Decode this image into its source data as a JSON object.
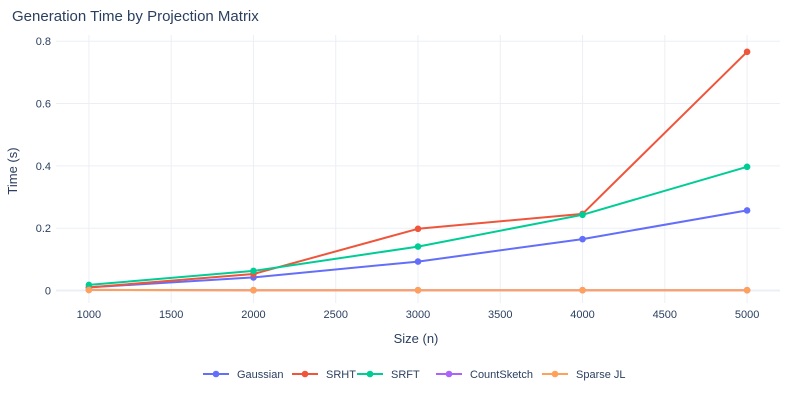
{
  "chart_data": {
    "type": "line",
    "title": "Generation Time by Projection Matrix",
    "xlabel": "Size (n)",
    "ylabel": "Time (s)",
    "x": [
      1000,
      2000,
      3000,
      4000,
      5000
    ],
    "xlim": [
      800,
      5200
    ],
    "ylim": [
      -0.04,
      0.82
    ],
    "xticks": [
      1000,
      1500,
      2000,
      2500,
      3000,
      3500,
      4000,
      4500,
      5000
    ],
    "xtick_labels": [
      "1000",
      "1500",
      "2000",
      "2500",
      "3000",
      "3500",
      "4000",
      "4500",
      "5000"
    ],
    "yticks": [
      0,
      0.2,
      0.4,
      0.6,
      0.8
    ],
    "ytick_labels": [
      "0",
      "0.2",
      "0.4",
      "0.6",
      "0.8"
    ],
    "grid": true,
    "legend_position": "bottom-center",
    "series": [
      {
        "name": "Gaussian",
        "color": "#636efa",
        "values": [
          0.01,
          0.042,
          0.093,
          0.165,
          0.257
        ]
      },
      {
        "name": "SRHT",
        "color": "#ef553b",
        "values": [
          0.01,
          0.053,
          0.198,
          0.246,
          0.766
        ]
      },
      {
        "name": "SRFT",
        "color": "#00cc96",
        "values": [
          0.018,
          0.063,
          0.141,
          0.243,
          0.397
        ]
      },
      {
        "name": "CountSketch",
        "color": "#ab63fa",
        "values": [
          0.002,
          0.001,
          0.001,
          0.001,
          0.001
        ]
      },
      {
        "name": "Sparse JL",
        "color": "#ffa15a",
        "values": [
          0.002,
          0.001,
          0.001,
          0.001,
          0.001
        ]
      }
    ]
  }
}
